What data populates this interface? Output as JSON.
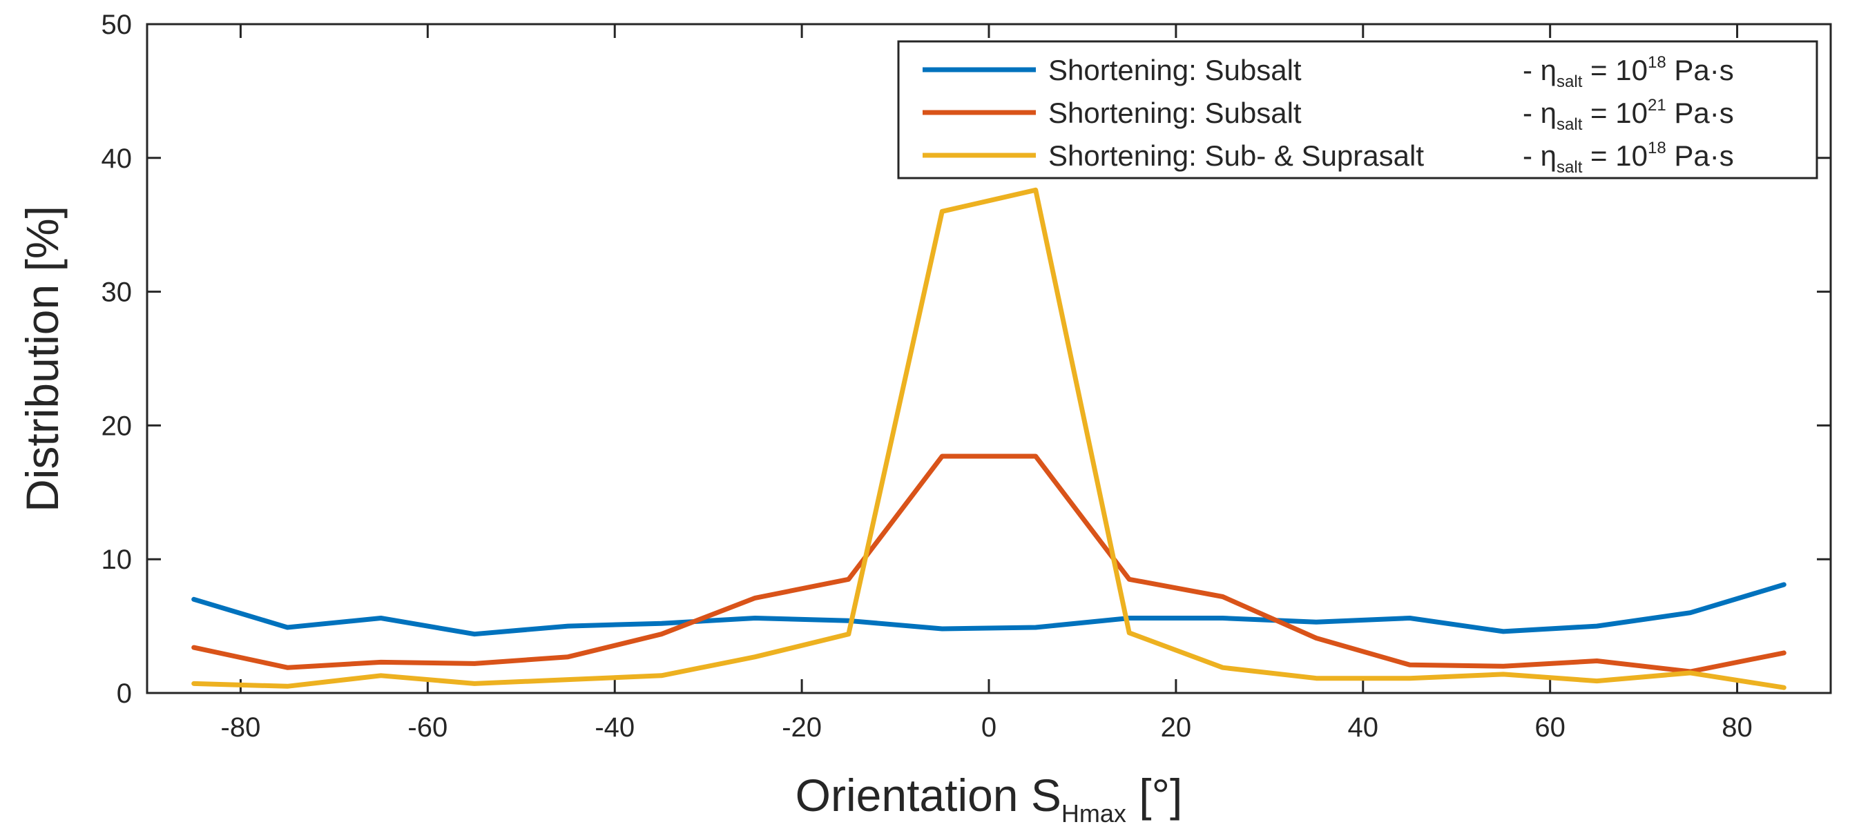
{
  "chart_data": {
    "type": "line",
    "title": "",
    "xlabel": "Orientation S",
    "xlabel_sub": "Hmax",
    "xlabel_unit": " [°]",
    "ylabel": "Distribution [%]",
    "xlim": [
      -90,
      90
    ],
    "ylim": [
      0,
      50
    ],
    "xticks": [
      -80,
      -60,
      -40,
      -20,
      0,
      20,
      40,
      60,
      80
    ],
    "yticks": [
      0,
      10,
      20,
      30,
      40,
      50
    ],
    "grid": false,
    "legend_position": "top-right",
    "x": [
      -85,
      -75,
      -65,
      -55,
      -45,
      -35,
      -25,
      -15,
      -5,
      5,
      15,
      25,
      35,
      45,
      55,
      65,
      75,
      85
    ],
    "series": [
      {
        "name": "Shortening: Subsalt",
        "eta_pre": "- η",
        "eta_sub": "salt",
        "eta_mid": " = 10",
        "eta_exp": "18",
        "eta_unit": " Pa·s",
        "color": "#0072BD",
        "values": [
          7.0,
          4.9,
          5.6,
          4.4,
          5.0,
          5.2,
          5.6,
          5.4,
          4.8,
          4.9,
          5.6,
          5.6,
          5.3,
          5.6,
          4.6,
          5.0,
          6.0,
          8.1
        ]
      },
      {
        "name": "Shortening: Subsalt",
        "eta_pre": "- η",
        "eta_sub": "salt",
        "eta_mid": " = 10",
        "eta_exp": "21",
        "eta_unit": " Pa·s",
        "color": "#D95319",
        "values": [
          3.4,
          1.9,
          2.3,
          2.2,
          2.7,
          4.4,
          7.1,
          8.5,
          17.7,
          17.7,
          8.5,
          7.2,
          4.1,
          2.1,
          2.0,
          2.4,
          1.6,
          3.0
        ]
      },
      {
        "name": "Shortening: Sub- & Suprasalt",
        "eta_pre": "- η",
        "eta_sub": "salt",
        "eta_mid": " = 10",
        "eta_exp": "18",
        "eta_unit": " Pa·s",
        "color": "#EDB120",
        "values": [
          0.7,
          0.5,
          1.3,
          0.7,
          1.0,
          1.3,
          2.7,
          4.4,
          36.0,
          37.6,
          4.5,
          1.9,
          1.1,
          1.1,
          1.4,
          0.9,
          1.5,
          0.4
        ]
      }
    ]
  }
}
